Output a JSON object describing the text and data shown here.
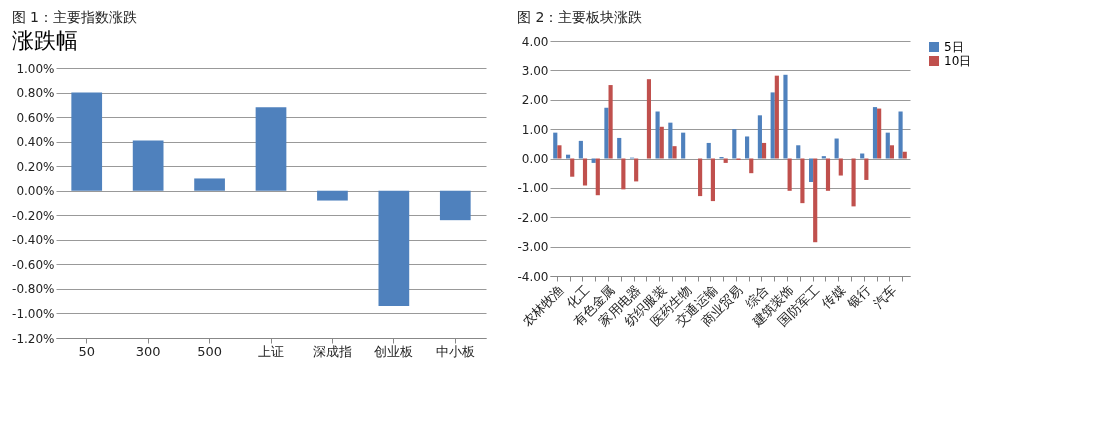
{
  "chart_data": [
    {
      "type": "bar",
      "title": "图 1：主要指数涨跌",
      "subtitle": "涨跌幅",
      "categories": [
        "50",
        "300",
        "500",
        "上证",
        "深成指",
        "创业板",
        "中小板"
      ],
      "values": [
        0.8,
        0.41,
        0.1,
        0.68,
        -0.08,
        -0.94,
        -0.24
      ],
      "color": "#4f81bd",
      "ylim": [
        -1.2,
        1.0
      ],
      "yticks": [
        {
          "value": -1.2,
          "label": "-1.20%"
        },
        {
          "value": -1.0,
          "label": "-1.00%"
        },
        {
          "value": -0.8,
          "label": "-0.80%"
        },
        {
          "value": -0.6,
          "label": "-0.60%"
        },
        {
          "value": -0.4,
          "label": "-0.40%"
        },
        {
          "value": -0.2,
          "label": "-0.20%"
        },
        {
          "value": 0,
          "label": "0.00%"
        },
        {
          "value": 0.2,
          "label": "0.20%"
        },
        {
          "value": 0.4,
          "label": "0.40%"
        },
        {
          "value": 0.6,
          "label": "0.60%"
        },
        {
          "value": 0.8,
          "label": "0.80%"
        },
        {
          "value": 1.0,
          "label": "1.00%"
        }
      ],
      "grid": "y"
    },
    {
      "type": "bar",
      "title": "图 2：主要板块涨跌",
      "categories": [
        "农林牧渔",
        null,
        "化工",
        null,
        "有色金属",
        null,
        "家用电器",
        null,
        "纺织服装",
        null,
        "医药生物",
        null,
        "交通运输",
        null,
        "商业贸易",
        null,
        "综合",
        null,
        "建筑装饰",
        null,
        "国防军工",
        null,
        "传媒",
        null,
        "银行",
        null,
        "汽车",
        null
      ],
      "series": [
        {
          "name": "5日",
          "color": "#4f81bd",
          "values": [
            0.88,
            0.13,
            0.6,
            -0.15,
            1.73,
            0.7,
            0.03,
            null,
            1.6,
            1.22,
            0.88,
            null,
            0.53,
            0.05,
            1.0,
            0.75,
            1.47,
            2.25,
            2.85,
            0.45,
            -0.8,
            0.08,
            0.68,
            null,
            0.17,
            1.75,
            0.88,
            1.6
          ]
        },
        {
          "name": "10日",
          "color": "#c0504d",
          "values": [
            0.45,
            -0.62,
            -0.92,
            -1.25,
            2.5,
            -1.05,
            -0.78,
            2.7,
            1.08,
            0.42,
            null,
            -1.28,
            -1.45,
            -0.15,
            -0.05,
            -0.5,
            0.53,
            2.82,
            -1.1,
            -1.52,
            -2.85,
            -1.1,
            -0.58,
            -1.63,
            -0.73,
            1.7,
            0.45,
            0.23
          ]
        }
      ],
      "ylim": [
        -4,
        4
      ],
      "yticks": [
        {
          "value": -4,
          "label": "-4.00"
        },
        {
          "value": -3,
          "label": "-3.00"
        },
        {
          "value": -2,
          "label": "-2.00"
        },
        {
          "value": -1,
          "label": "-1.00"
        },
        {
          "value": 0,
          "label": "0.00"
        },
        {
          "value": 1,
          "label": "1.00"
        },
        {
          "value": 2,
          "label": "2.00"
        },
        {
          "value": 3,
          "label": "3.00"
        },
        {
          "value": 4,
          "label": "4.00"
        }
      ],
      "grid": "y",
      "legend": "right"
    }
  ]
}
